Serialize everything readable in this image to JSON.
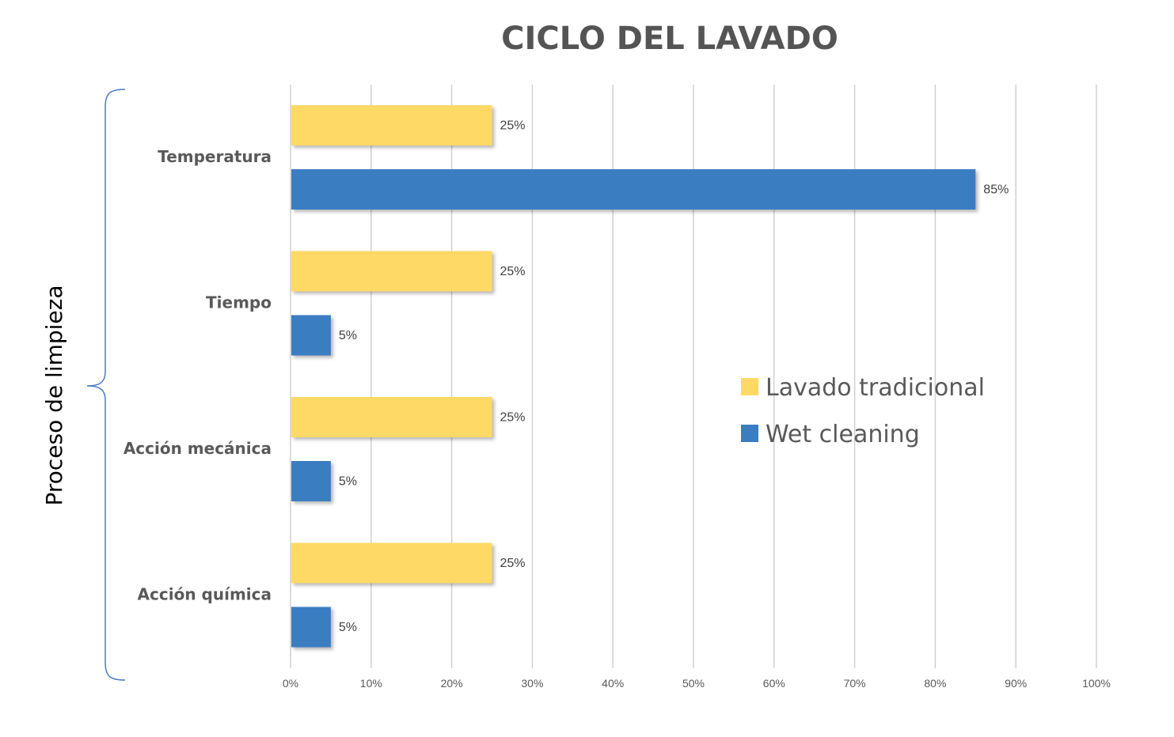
{
  "chart_data": {
    "type": "bar",
    "orientation": "horizontal",
    "title": "CICLO DEL LAVADO",
    "ylabel": "Proceso de limpieza",
    "xlabel": "",
    "categories": [
      "Temperatura",
      "Tiempo",
      "Acción mecánica",
      "Acción química"
    ],
    "series": [
      {
        "name": "Lavado tradicional",
        "color": "#FFD966",
        "values": [
          25,
          25,
          25,
          25
        ],
        "labels": [
          "25%",
          "25%",
          "25%",
          "25%"
        ]
      },
      {
        "name": "Wet cleaning",
        "color": "#3A7DC1",
        "values": [
          85,
          5,
          5,
          5
        ],
        "labels": [
          "85%",
          "5%",
          "5%",
          "5%"
        ]
      }
    ],
    "xlim": [
      0,
      100
    ],
    "xticks": [
      "0%",
      "10%",
      "20%",
      "30%",
      "40%",
      "50%",
      "60%",
      "70%",
      "80%",
      "90%",
      "100%"
    ],
    "grid": true,
    "legend_position": "right"
  }
}
